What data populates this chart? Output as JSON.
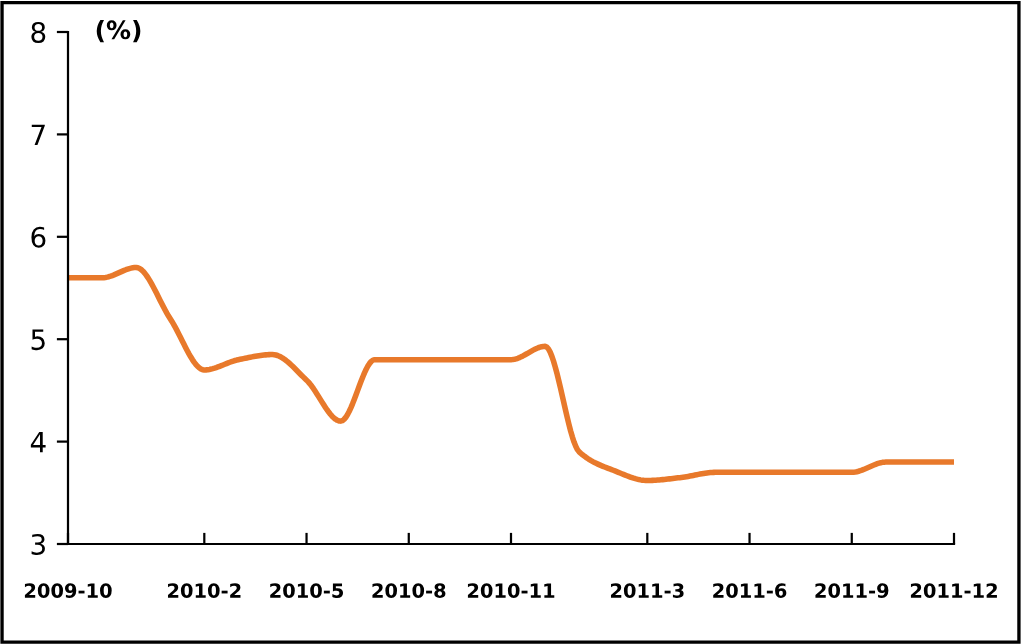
{
  "chart_data": {
    "type": "line",
    "ylabel": "(%)",
    "categories": [
      "2009-10",
      null,
      null,
      null,
      "2010-2",
      null,
      null,
      "2010-5",
      null,
      null,
      "2010-8",
      null,
      null,
      "2010-11",
      null,
      null,
      null,
      "2011-3",
      null,
      null,
      "2011-6",
      null,
      null,
      "2011-9",
      null,
      null,
      "2011-12"
    ],
    "series": [
      {
        "color": "#e8792b",
        "values": [
          5.6,
          5.6,
          5.7,
          5.2,
          4.7,
          4.8,
          4.85,
          4.6,
          4.2,
          4.8,
          4.8,
          4.8,
          4.8,
          4.8,
          4.93,
          3.9,
          3.72,
          3.62,
          3.65,
          3.7,
          3.7,
          3.7,
          3.7,
          3.7,
          3.8,
          3.8,
          3.8
        ]
      }
    ],
    "ylim": [
      3,
      8
    ],
    "yticks": [
      3,
      4,
      5,
      6,
      7,
      8
    ],
    "grid": false,
    "legend": false,
    "marker": "none",
    "line_style": "solid"
  }
}
